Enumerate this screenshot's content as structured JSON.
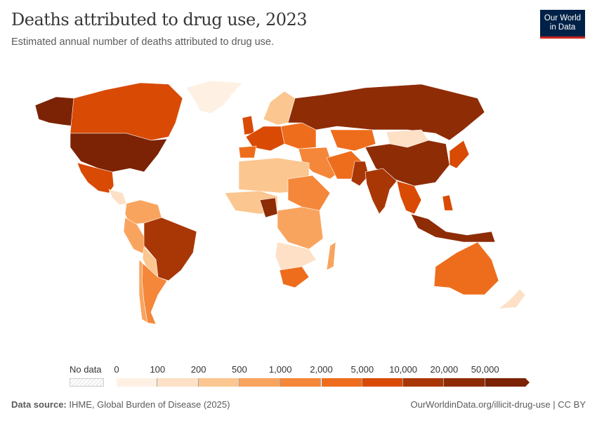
{
  "header": {
    "title": "Deaths attributed to drug use, 2023",
    "subtitle": "Estimated annual number of deaths attributed to drug use.",
    "logo": "Our World in Data",
    "logo_line1": "Our World",
    "logo_line2": "in Data"
  },
  "legend": {
    "no_data_label": "No data",
    "ticks": [
      "0",
      "100",
      "200",
      "500",
      "1,000",
      "2,000",
      "5,000",
      "10,000",
      "20,000",
      "50,000"
    ],
    "colors": [
      "#fef1e4",
      "#fde0c5",
      "#fbc690",
      "#f9a45e",
      "#f4873a",
      "#ee6d1c",
      "#d94a05",
      "#a93706",
      "#8e2c06",
      "#7c2205"
    ]
  },
  "footer": {
    "source_label": "Data source:",
    "source": "IHME, Global Burden of Disease (2025)",
    "url": "OurWorldinData.org/illicit-drug-use | CC BY"
  }
}
